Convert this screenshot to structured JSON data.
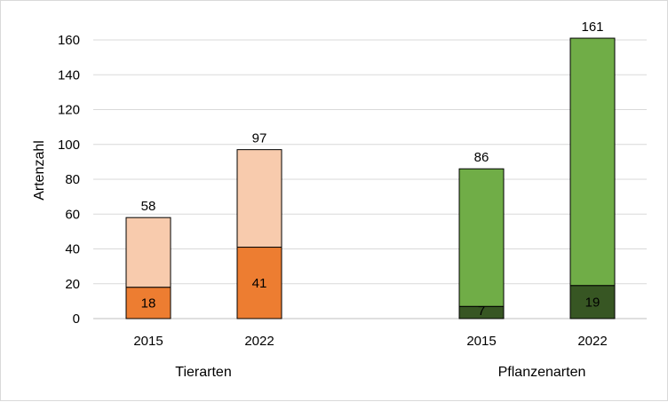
{
  "chart_data": {
    "type": "bar",
    "stacked": true,
    "ylabel": "Artenzahl",
    "ylim": [
      0,
      160
    ],
    "yticks": [
      0,
      20,
      40,
      60,
      80,
      100,
      120,
      140,
      160
    ],
    "grid": true,
    "groups": [
      {
        "name": "Tierarten",
        "colors": {
          "lower": "#ED7D31",
          "upper": "#F8CBAD"
        },
        "bars": [
          {
            "year": "2015",
            "lower": 18,
            "total": 58
          },
          {
            "year": "2022",
            "lower": 41,
            "total": 97
          }
        ]
      },
      {
        "name": "Pflanzenarten",
        "colors": {
          "lower": "#375623",
          "upper": "#70AD47"
        },
        "bars": [
          {
            "year": "2015",
            "lower": 7,
            "total": 86
          },
          {
            "year": "2022",
            "lower": 19,
            "total": 161
          }
        ]
      }
    ]
  }
}
